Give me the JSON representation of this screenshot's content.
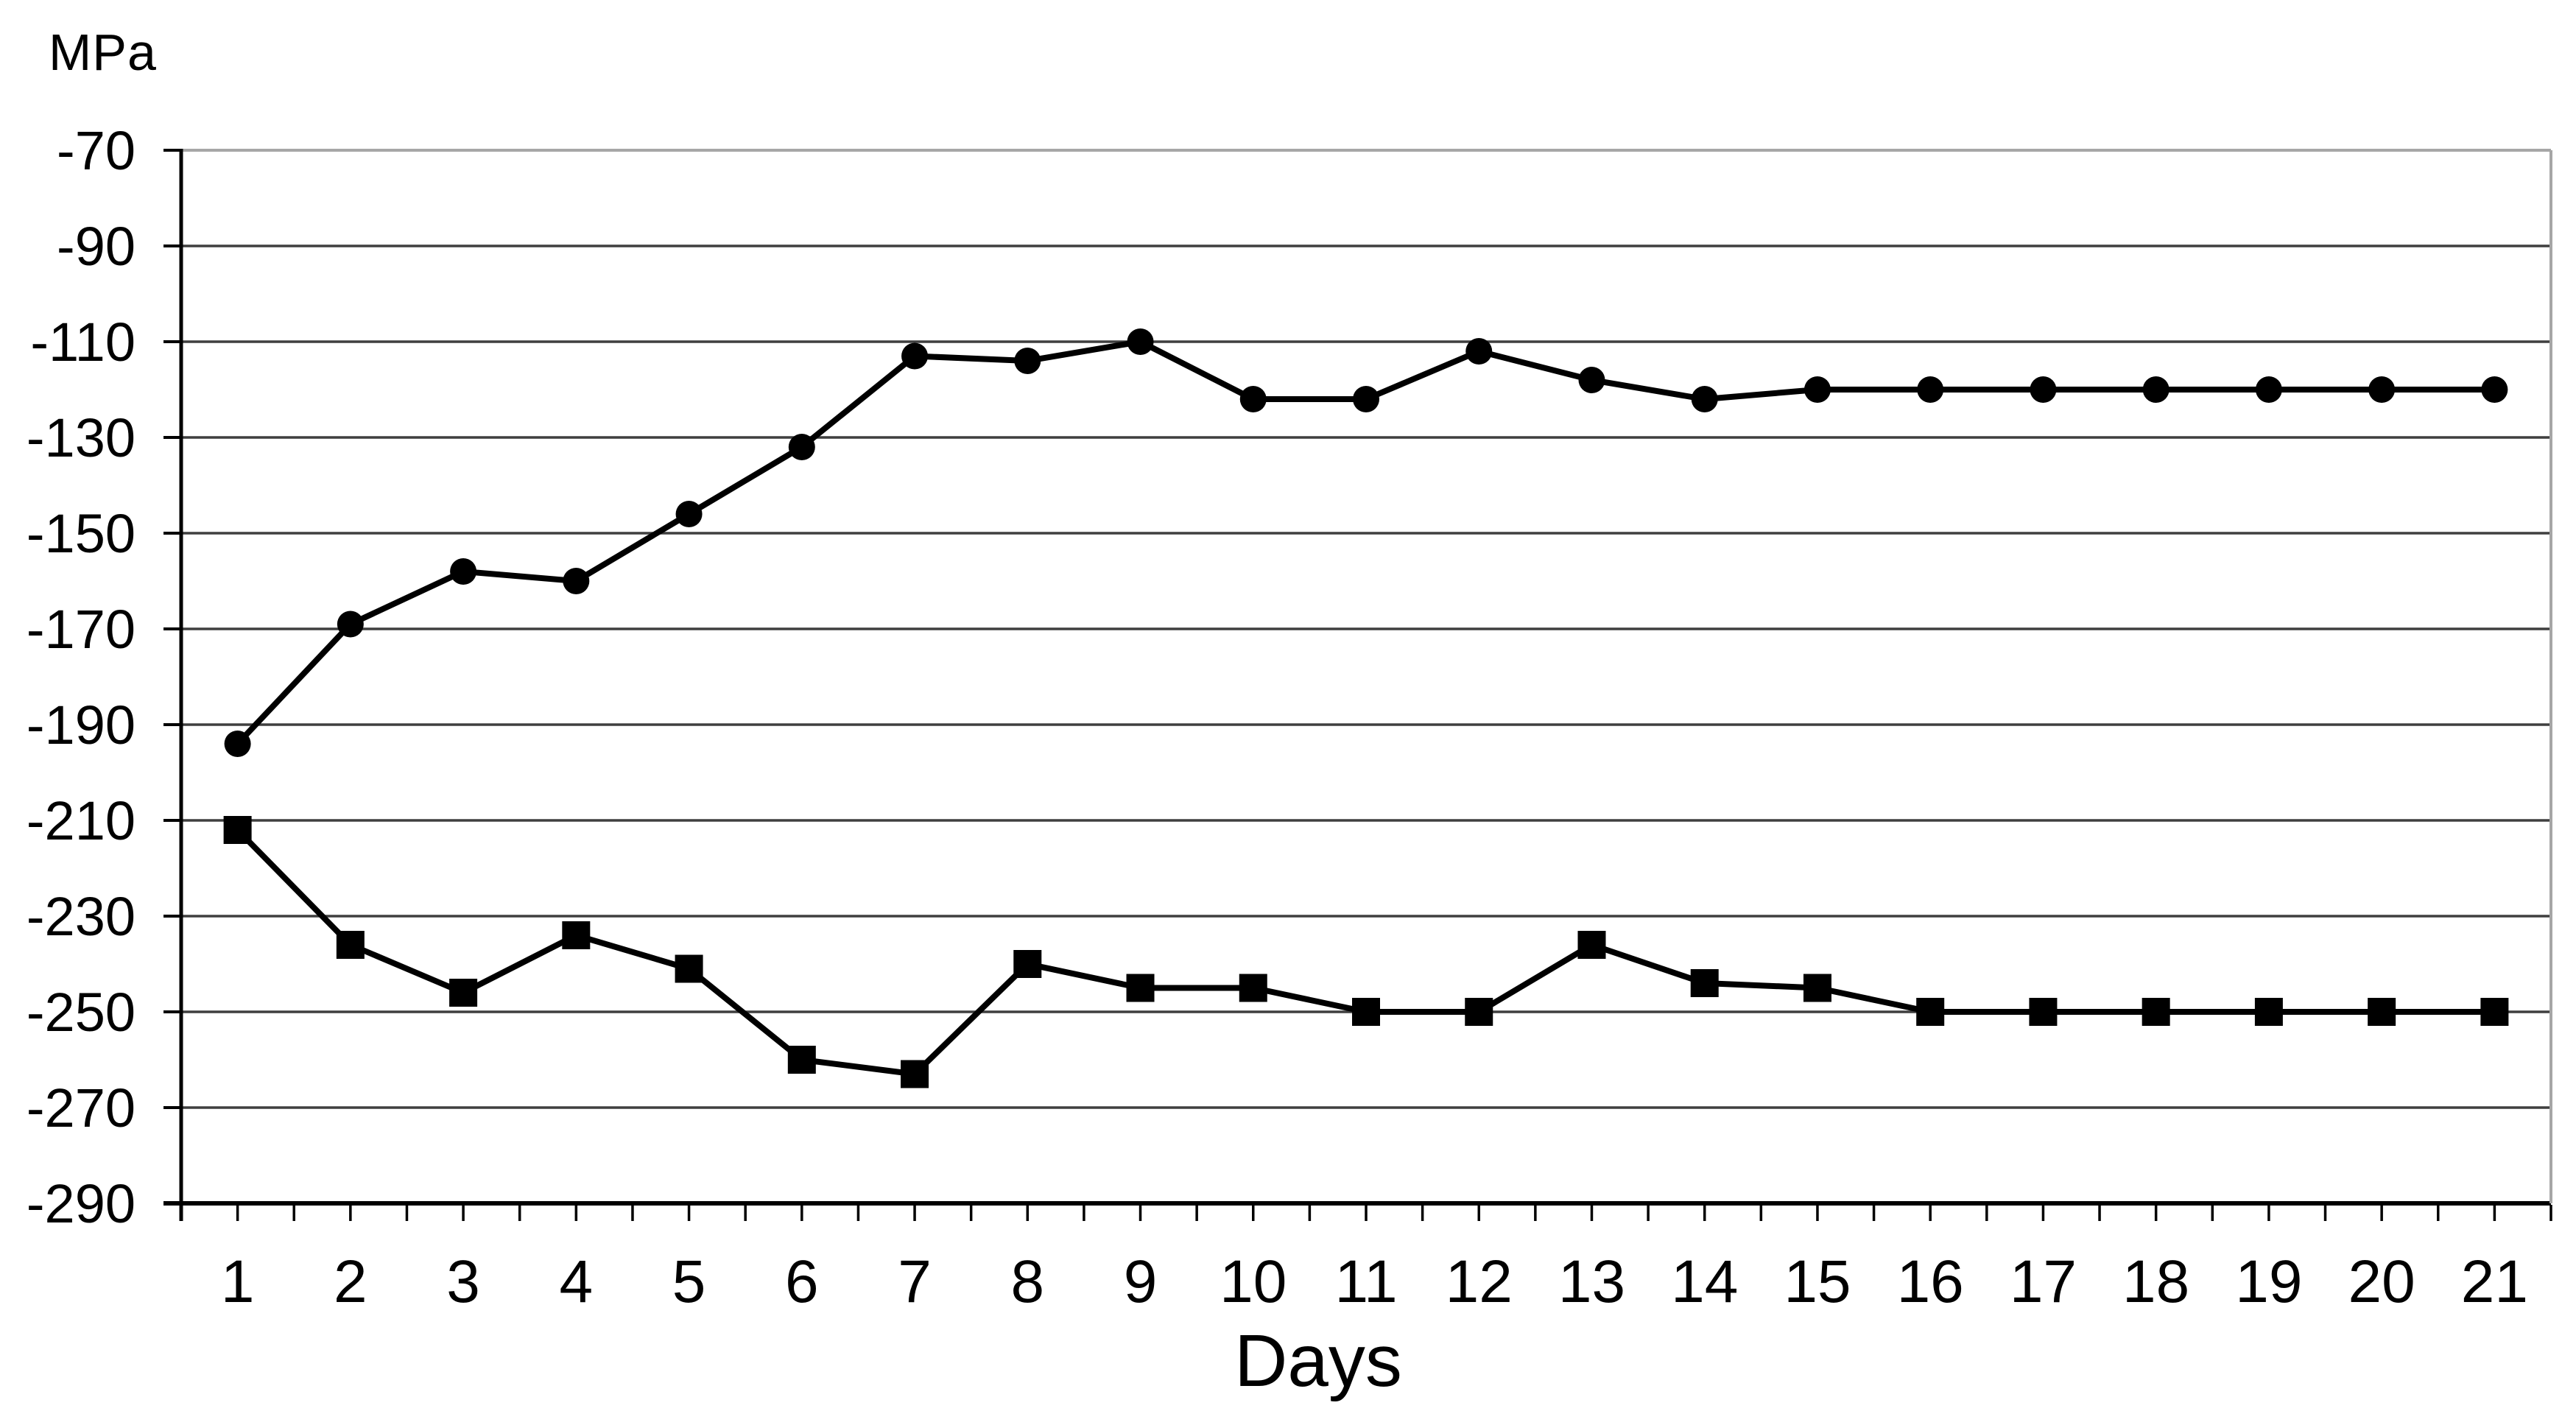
{
  "chart_data": {
    "type": "line",
    "title": "",
    "ylabel": "MPa",
    "xlabel": "Days",
    "ylim": [
      -290,
      -70
    ],
    "y_tick_step": 20,
    "y_ticks": [
      -70,
      -90,
      -110,
      -130,
      -150,
      -170,
      -190,
      -210,
      -230,
      -250,
      -270,
      -290
    ],
    "y_ticklabels": [
      "-70",
      "-90",
      "-110",
      "-130",
      "-150",
      "-170",
      "-190",
      "-210",
      "-230",
      "-250",
      "-270",
      "-290"
    ],
    "categories": [
      1,
      2,
      3,
      4,
      5,
      6,
      7,
      8,
      9,
      10,
      11,
      12,
      13,
      14,
      15,
      16,
      17,
      18,
      19,
      20,
      21
    ],
    "x_ticklabels": [
      "1",
      "2",
      "3",
      "4",
      "5",
      "6",
      "7",
      "8",
      "9",
      "10",
      "11",
      "12",
      "13",
      "14",
      "15",
      "16",
      "17",
      "18",
      "19",
      "20",
      "21"
    ],
    "grid": true,
    "legend": "none",
    "series": [
      {
        "name": "upper-series-circle-markers",
        "marker": "circle",
        "color": "#000000",
        "values": [
          -194,
          -169,
          -158,
          -160,
          -146,
          -132,
          -113,
          -114,
          -110,
          -122,
          -122,
          -112,
          -118,
          -122,
          -120,
          -120,
          -120,
          -120,
          -120,
          -120,
          -120
        ]
      },
      {
        "name": "lower-series-square-markers",
        "marker": "square",
        "color": "#000000",
        "values": [
          -212,
          -236,
          -246,
          -234,
          -241,
          -260,
          -263,
          -240,
          -245,
          -245,
          -250,
          -250,
          -236,
          -244,
          -245,
          -250,
          -250,
          -250,
          -250,
          -250,
          -250
        ]
      }
    ],
    "colors": {
      "series_line": "#000000",
      "gridline": "#3f3f3f",
      "top_boundary_line": "#a6a6a6",
      "right_boundary_line": "#a6a6a6",
      "axis": "#000000",
      "tick": "#000000",
      "text": "#000000",
      "background": "#ffffff"
    }
  }
}
